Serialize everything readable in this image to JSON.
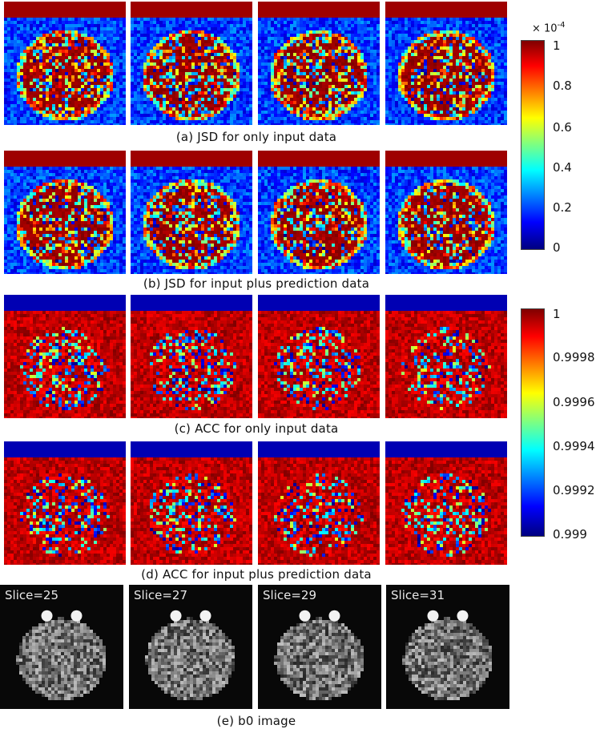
{
  "captions": {
    "a": "(a) JSD for only input data",
    "b": "(b) JSD for input plus prediction data",
    "c": "(c) ACC for only input data",
    "d": "(d) ACC for input plus prediction data",
    "e": "(e) b0 image"
  },
  "colorbar_jsd": {
    "multiplier": "× 10",
    "exponent": "-4",
    "ticks": [
      "1",
      "0.8",
      "0.6",
      "0.4",
      "0.2",
      "0"
    ],
    "colormap": "jet"
  },
  "colorbar_acc": {
    "ticks": [
      "1",
      "0.9998",
      "0.9996",
      "0.9994",
      "0.9992",
      "0.999"
    ],
    "colormap": "jet"
  },
  "slices": [
    "Slice=25",
    "Slice=27",
    "Slice=29",
    "Slice=31"
  ],
  "colors": {
    "jsd_background": "#1a3cc8",
    "jsd_high": "#9c0b0b",
    "acc_background": "#c81818",
    "acc_low": "#0a1a9e",
    "b0_background": "#0a0a0a"
  }
}
